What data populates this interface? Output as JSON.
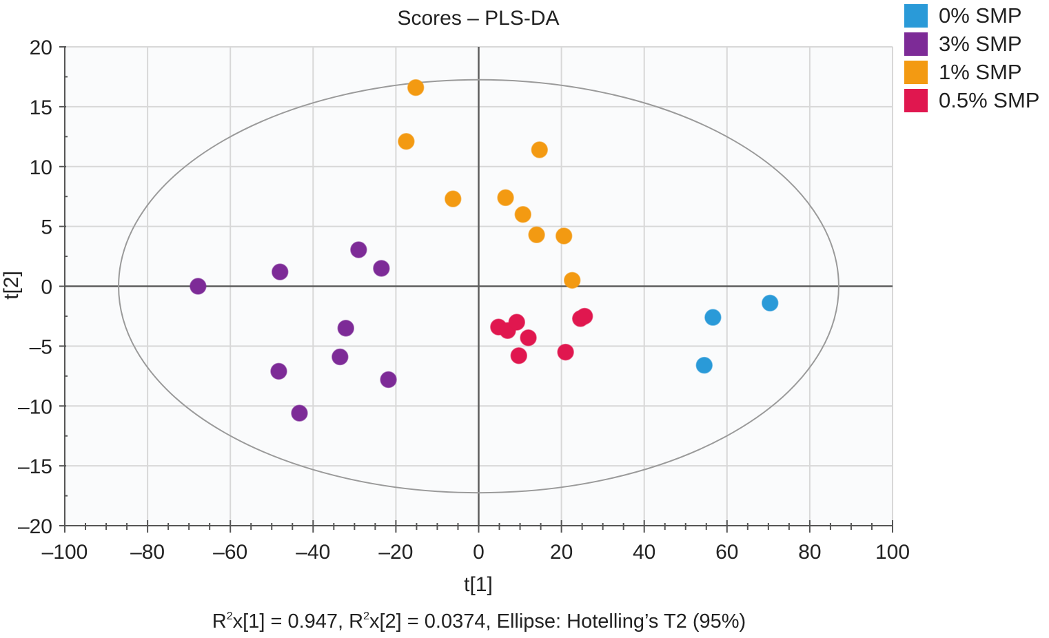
{
  "chart_data": {
    "type": "scatter",
    "title": "Scores – PLS-DA",
    "xlabel": "t[1]",
    "ylabel": "t[2]",
    "xlim": [
      -100,
      100
    ],
    "ylim": [
      -20,
      20
    ],
    "xticks": [
      -100,
      -80,
      -60,
      -40,
      -20,
      0,
      20,
      40,
      60,
      80,
      100
    ],
    "yticks": [
      20,
      15,
      10,
      5,
      0,
      -5,
      -10,
      -15,
      -20
    ],
    "xtick_labels": [
      "–100",
      "–80",
      "–60",
      "–40",
      "–20",
      "0",
      "20",
      "40",
      "60",
      "80",
      "100"
    ],
    "ytick_labels": [
      "20",
      "15",
      "10",
      "5",
      "0",
      "–5",
      "–10",
      "–15",
      "–20"
    ],
    "grid": true,
    "legend_position": "top-right",
    "ellipse": {
      "label": "Hotelling's T2 (95%)",
      "rx": 87,
      "ry": 17.25,
      "cx": 0,
      "cy": 0
    },
    "series": [
      {
        "name": "0% SMP",
        "color": "#2a9ad8",
        "points": [
          [
            56.6,
            -2.6
          ],
          [
            70.4,
            -1.4
          ],
          [
            54.5,
            -6.6
          ]
        ]
      },
      {
        "name": "3% SMP",
        "color": "#7d2b97",
        "points": [
          [
            -67.8,
            0.0
          ],
          [
            -48.0,
            1.2
          ],
          [
            -29.0,
            3.05
          ],
          [
            -23.5,
            1.5
          ],
          [
            -32.1,
            -3.5
          ],
          [
            -33.5,
            -5.9
          ],
          [
            -48.3,
            -7.1
          ],
          [
            -21.8,
            -7.8
          ],
          [
            -43.3,
            -10.6
          ]
        ]
      },
      {
        "name": "1% SMP",
        "color": "#f39a12",
        "points": [
          [
            -15.2,
            16.6
          ],
          [
            -17.5,
            12.1
          ],
          [
            14.7,
            11.4
          ],
          [
            -6.2,
            7.3
          ],
          [
            6.5,
            7.4
          ],
          [
            10.7,
            6.0
          ],
          [
            14.0,
            4.3
          ],
          [
            20.6,
            4.2
          ],
          [
            22.6,
            0.5
          ]
        ]
      },
      {
        "name": "0.5% SMP",
        "color": "#e0174f",
        "points": [
          [
            4.8,
            -3.4
          ],
          [
            7.0,
            -3.7
          ],
          [
            9.2,
            -3.0
          ],
          [
            12.0,
            -4.3
          ],
          [
            9.7,
            -5.8
          ],
          [
            21.0,
            -5.5
          ],
          [
            24.6,
            -2.7
          ],
          [
            25.6,
            -2.5
          ]
        ]
      }
    ],
    "footer": {
      "r2x1_prefix": "R",
      "r2x1_sup": "2",
      "r2x1_text": "x[1] = 0.947, ",
      "r2x2_prefix": "R",
      "r2x2_sup": "2",
      "r2x2_text": "x[2] = 0.0374, Ellipse: Hotelling’s T2 (95%)"
    }
  }
}
